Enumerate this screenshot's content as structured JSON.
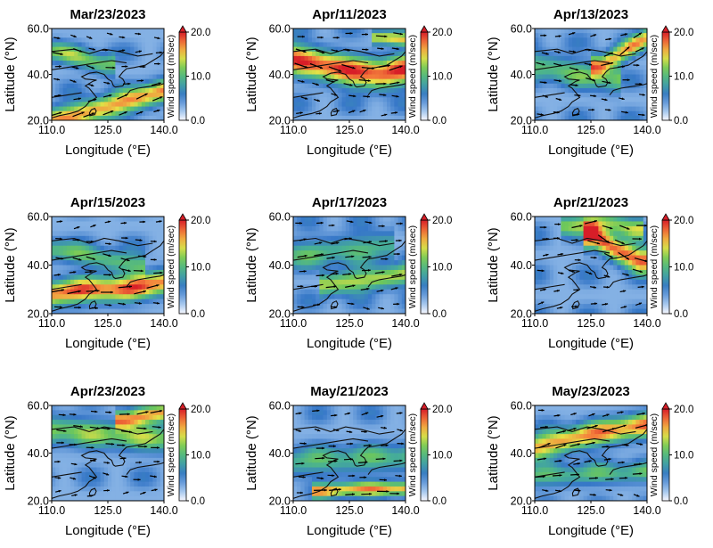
{
  "figure": {
    "xlabel": "Longitude (°E)",
    "ylabel": "Latitude (°N)",
    "colorbar_label": "Wind speed (m/sec)",
    "colorbar_ticks": [
      "0.0",
      "10.0",
      "20.0"
    ]
  },
  "chart_data": [
    {
      "type": "heatmap",
      "title": "Mar/23/2023",
      "xlabel": "Longitude (°E)",
      "ylabel": "Latitude (°N)",
      "x_ticks": [
        "110.0",
        "125.0",
        "140.0"
      ],
      "y_ticks": [
        "20.0",
        "40.0",
        "60.0"
      ],
      "xlim": [
        110,
        140
      ],
      "ylim": [
        20,
        60
      ],
      "colorbar": {
        "label": "Wind speed (m/sec)",
        "min": 0,
        "max": 20,
        "ticks": [
          "0.0",
          "10.0",
          "20.0"
        ]
      },
      "jets": [
        {
          "lon": [
            110,
            118,
            126,
            134,
            140
          ],
          "lat": [
            20,
            23,
            26,
            30,
            33
          ],
          "peak": 17,
          "width": 3.5
        },
        {
          "lon": [
            112,
            118,
            124
          ],
          "lat": [
            50,
            47,
            44
          ],
          "peak": 12,
          "width": 3
        }
      ]
    },
    {
      "type": "heatmap",
      "title": "Apr/11/2023",
      "xlabel": "Longitude (°E)",
      "ylabel": "Latitude (°N)",
      "x_ticks": [
        "110.0",
        "125.0",
        "140.0"
      ],
      "y_ticks": [
        "20.0",
        "40.0",
        "60.0"
      ],
      "xlim": [
        110,
        140
      ],
      "ylim": [
        20,
        60
      ],
      "colorbar": {
        "label": "Wind speed (m/sec)",
        "min": 0,
        "max": 20,
        "ticks": [
          "0.0",
          "10.0",
          "20.0"
        ]
      },
      "jets": [
        {
          "lon": [
            110,
            118,
            126,
            134,
            140
          ],
          "lat": [
            47,
            44,
            41,
            40,
            42
          ],
          "peak": 19,
          "width": 4.5
        },
        {
          "lon": [
            134,
            140
          ],
          "lat": [
            56,
            55
          ],
          "peak": 15,
          "width": 2
        }
      ]
    },
    {
      "type": "heatmap",
      "title": "Apr/13/2023",
      "xlabel": "Longitude (°E)",
      "ylabel": "Latitude (°N)",
      "x_ticks": [
        "110.0",
        "125.0",
        "140.0"
      ],
      "y_ticks": [
        "20.0",
        "40.0",
        "60.0"
      ],
      "xlim": [
        110,
        140
      ],
      "ylim": [
        20,
        60
      ],
      "colorbar": {
        "label": "Wind speed (m/sec)",
        "min": 0,
        "max": 20,
        "ticks": [
          "0.0",
          "10.0",
          "20.0"
        ]
      },
      "jets": [
        {
          "lon": [
            128,
            134,
            140
          ],
          "lat": [
            44,
            50,
            56
          ],
          "peak": 16,
          "width": 3
        },
        {
          "lon": [
            110,
            120,
            130
          ],
          "lat": [
            44,
            41,
            38
          ],
          "peak": 11,
          "width": 4
        }
      ]
    },
    {
      "type": "heatmap",
      "title": "Apr/15/2023",
      "xlabel": "Longitude (°E)",
      "ylabel": "Latitude (°N)",
      "x_ticks": [
        "110.0",
        "125.0",
        "140.0"
      ],
      "y_ticks": [
        "20.0",
        "40.0",
        "60.0"
      ],
      "xlim": [
        110,
        140
      ],
      "ylim": [
        20,
        60
      ],
      "colorbar": {
        "label": "Wind speed (m/sec)",
        "min": 0,
        "max": 20,
        "ticks": [
          "0.0",
          "10.0",
          "20.0"
        ]
      },
      "jets": [
        {
          "lon": [
            110,
            120,
            130,
            140
          ],
          "lat": [
            28,
            30,
            30,
            33
          ],
          "peak": 18,
          "width": 3.5
        },
        {
          "lon": [
            112,
            122,
            132
          ],
          "lat": [
            46,
            43,
            40
          ],
          "peak": 11,
          "width": 3
        }
      ]
    },
    {
      "type": "heatmap",
      "title": "Apr/17/2023",
      "xlabel": "Longitude (°E)",
      "ylabel": "Latitude (°N)",
      "x_ticks": [
        "110.0",
        "125.0",
        "140.0"
      ],
      "y_ticks": [
        "20.0",
        "40.0",
        "60.0"
      ],
      "xlim": [
        110,
        140
      ],
      "ylim": [
        20,
        60
      ],
      "colorbar": {
        "label": "Wind speed (m/sec)",
        "min": 0,
        "max": 20,
        "ticks": [
          "0.0",
          "10.0",
          "20.0"
        ]
      },
      "jets": [
        {
          "lon": [
            120,
            130,
            140
          ],
          "lat": [
            32,
            34,
            36
          ],
          "peak": 14,
          "width": 3
        },
        {
          "lon": [
            110,
            122,
            134
          ],
          "lat": [
            44,
            46,
            48
          ],
          "peak": 10,
          "width": 4
        }
      ]
    },
    {
      "type": "heatmap",
      "title": "Apr/21/2023",
      "xlabel": "Longitude (°E)",
      "ylabel": "Latitude (°N)",
      "x_ticks": [
        "110.0",
        "125.0",
        "140.0"
      ],
      "y_ticks": [
        "20.0",
        "40.0",
        "60.0"
      ],
      "xlim": [
        110,
        140
      ],
      "ylim": [
        20,
        60
      ],
      "colorbar": {
        "label": "Wind speed (m/sec)",
        "min": 0,
        "max": 20,
        "ticks": [
          "0.0",
          "10.0",
          "20.0"
        ]
      },
      "jets": [
        {
          "lon": [
            126,
            132,
            138
          ],
          "lat": [
            52,
            46,
            42
          ],
          "peak": 19,
          "width": 3.5
        },
        {
          "lon": [
            120,
            128,
            136
          ],
          "lat": [
            56,
            58,
            55
          ],
          "peak": 13,
          "width": 3
        }
      ]
    },
    {
      "type": "heatmap",
      "title": "Apr/23/2023",
      "xlabel": "Longitude (°E)",
      "ylabel": "Latitude (°N)",
      "x_ticks": [
        "110.0",
        "125.0",
        "140.0"
      ],
      "y_ticks": [
        "20.0",
        "40.0",
        "60.0"
      ],
      "xlim": [
        110,
        140
      ],
      "ylim": [
        20,
        60
      ],
      "colorbar": {
        "label": "Wind speed (m/sec)",
        "min": 0,
        "max": 20,
        "ticks": [
          "0.0",
          "10.0",
          "20.0"
        ]
      },
      "jets": [
        {
          "lon": [
            130,
            136,
            140
          ],
          "lat": [
            54,
            56,
            57
          ],
          "peak": 17,
          "width": 2.5
        },
        {
          "lon": [
            110,
            124,
            140
          ],
          "lat": [
            50,
            48,
            46
          ],
          "peak": 12,
          "width": 4
        }
      ]
    },
    {
      "type": "heatmap",
      "title": "May/21/2023",
      "xlabel": "Longitude (°E)",
      "ylabel": "Latitude (°N)",
      "x_ticks": [
        "110.0",
        "125.0",
        "140.0"
      ],
      "y_ticks": [
        "20.0",
        "40.0",
        "60.0"
      ],
      "xlim": [
        110,
        140
      ],
      "ylim": [
        20,
        60
      ],
      "colorbar": {
        "label": "Wind speed (m/sec)",
        "min": 0,
        "max": 20,
        "ticks": [
          "0.0",
          "10.0",
          "20.0"
        ]
      },
      "jets": [
        {
          "lon": [
            118,
            128,
            138
          ],
          "lat": [
            24,
            25,
            25
          ],
          "peak": 16,
          "width": 2
        },
        {
          "lon": [
            110,
            125,
            140
          ],
          "lat": [
            36,
            37,
            38
          ],
          "peak": 10,
          "width": 4
        }
      ]
    },
    {
      "type": "heatmap",
      "title": "May/23/2023",
      "xlabel": "Longitude (°E)",
      "ylabel": "Latitude (°N)",
      "x_ticks": [
        "110.0",
        "125.0",
        "140.0"
      ],
      "y_ticks": [
        "20.0",
        "40.0",
        "60.0"
      ],
      "xlim": [
        110,
        140
      ],
      "ylim": [
        20,
        60
      ],
      "colorbar": {
        "label": "Wind speed (m/sec)",
        "min": 0,
        "max": 20,
        "ticks": [
          "0.0",
          "10.0",
          "20.0"
        ]
      },
      "jets": [
        {
          "lon": [
            110,
            120,
            130,
            140
          ],
          "lat": [
            42,
            46,
            49,
            52
          ],
          "peak": 17,
          "width": 3.5
        },
        {
          "lon": [
            110,
            125,
            140
          ],
          "lat": [
            30,
            31,
            32
          ],
          "peak": 10,
          "width": 3
        }
      ]
    }
  ]
}
